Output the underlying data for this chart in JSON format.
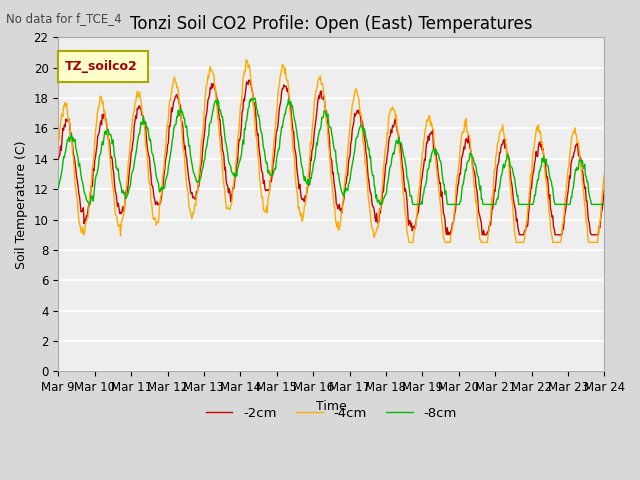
{
  "title": "Tonzi Soil CO2 Profile: Open (East) Temperatures",
  "subtitle": "No data for f_TCE_4",
  "ylabel": "Soil Temperature (C)",
  "xlabel": "Time",
  "legend_label": "TZ_soilco2",
  "legend_box_facecolor": "#ffffcc",
  "legend_box_edgecolor": "#aaa800",
  "series_labels": [
    "-2cm",
    "-4cm",
    "-8cm"
  ],
  "series_colors": [
    "#cc0000",
    "#ffaa00",
    "#00bb00"
  ],
  "ylim": [
    0,
    22
  ],
  "yticks": [
    0,
    2,
    4,
    6,
    8,
    10,
    12,
    14,
    16,
    18,
    20,
    22
  ],
  "n_days": 15,
  "bg_color": "#d8d8d8",
  "plot_bg_color": "#eeeeee",
  "grid_color": "#ffffff",
  "title_fontsize": 12,
  "axis_label_fontsize": 9,
  "tick_fontsize": 8.5
}
